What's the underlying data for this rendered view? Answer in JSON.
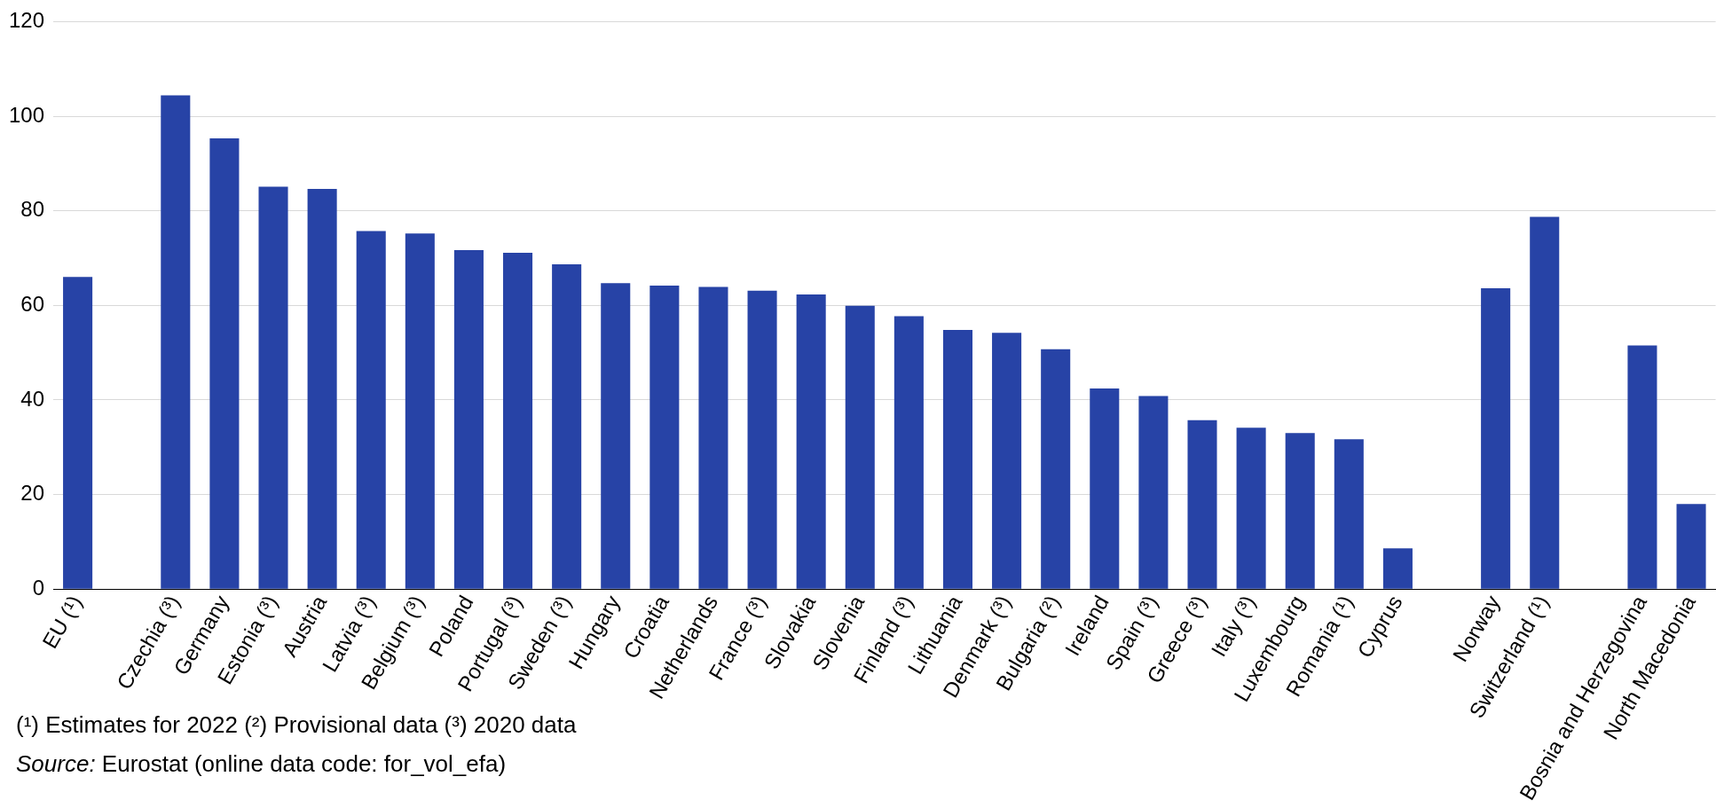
{
  "chart_data": {
    "type": "bar",
    "categories": [
      "EU (¹)",
      null,
      "Czechia (³)",
      "Germany",
      "Estonia (³)",
      "Austria",
      "Latvia (³)",
      "Belgium (³)",
      "Poland",
      "Portugal (³)",
      "Sweden (³)",
      "Hungary",
      "Croatia",
      "Netherlands",
      "France (³)",
      "Slovakia",
      "Slovenia",
      "Finland (³)",
      "Lithuania",
      "Denmark (³)",
      "Bulgaria (²)",
      "Ireland",
      "Spain (³)",
      "Greece (³)",
      "Italy (³)",
      "Luxembourg",
      "Romania (¹)",
      "Cyprus",
      null,
      "Norway",
      "Switzerland (¹)",
      null,
      "Bosnia and Herzegovina",
      "North Macedonia"
    ],
    "values": [
      66.0,
      null,
      104.4,
      95.3,
      85.1,
      84.6,
      75.7,
      75.2,
      71.7,
      71.1,
      68.7,
      64.7,
      64.2,
      63.9,
      63.1,
      62.3,
      59.9,
      57.7,
      54.8,
      54.2,
      50.7,
      42.4,
      40.8,
      35.7,
      34.1,
      33.0,
      31.7,
      8.6,
      null,
      63.6,
      78.7,
      null,
      51.5,
      18.0
    ],
    "color": "#2743a6",
    "ylim": [
      0,
      120
    ],
    "yticks": [
      0,
      20,
      40,
      60,
      80,
      100,
      120
    ],
    "grid": "y",
    "annotations": [
      "(¹) Estimates for 2022 (²) Provisional data (³) 2020 data",
      "Source: Eurostat (online data code: for_vol_efa)"
    ]
  }
}
